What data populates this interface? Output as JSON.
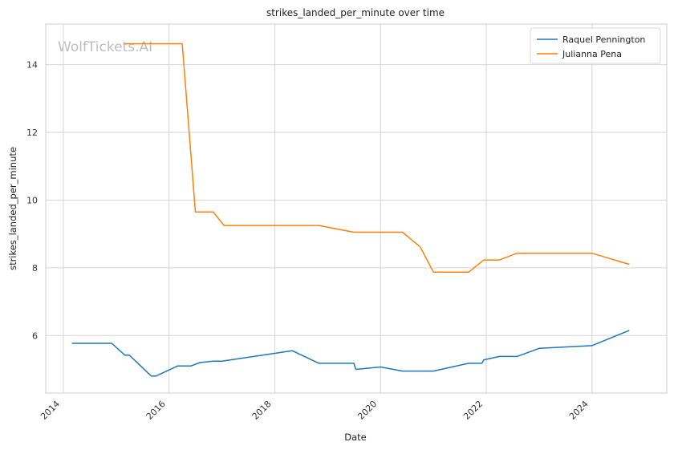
{
  "watermark": "WolfTickets.AI",
  "colors": {
    "grid": "#d5d5d5",
    "axes": "#cccccc",
    "series_0": "#1f77b4",
    "series_1": "#ff7f0e"
  },
  "chart_data": {
    "type": "line",
    "title": "strikes_landed_per_minute over time",
    "xlabel": "Date",
    "ylabel": "strikes_landed_per_minute",
    "xlim": [
      "2013-09-01",
      "2025-06-01"
    ],
    "ylim": [
      4.3,
      15.2
    ],
    "x_ticks": [
      "2014",
      "2016",
      "2018",
      "2020",
      "2022",
      "2024"
    ],
    "y_ticks": [
      6,
      8,
      10,
      12,
      14
    ],
    "grid": true,
    "legend_position": "top-right",
    "series": [
      {
        "name": "Raquel Pennington",
        "color": "#1f77b4",
        "points": [
          [
            "2014-03-01",
            5.77
          ],
          [
            "2014-12-01",
            5.77
          ],
          [
            "2015-03-01",
            5.42
          ],
          [
            "2015-04-01",
            5.42
          ],
          [
            "2015-09-01",
            4.8
          ],
          [
            "2015-10-01",
            4.8
          ],
          [
            "2016-03-01",
            5.1
          ],
          [
            "2016-06-01",
            5.1
          ],
          [
            "2016-08-01",
            5.2
          ],
          [
            "2016-11-01",
            5.24
          ],
          [
            "2017-01-01",
            5.24
          ],
          [
            "2018-05-01",
            5.55
          ],
          [
            "2018-11-01",
            5.18
          ],
          [
            "2019-07-01",
            5.18
          ],
          [
            "2019-07-15",
            5.0
          ],
          [
            "2020-01-01",
            5.07
          ],
          [
            "2020-06-01",
            4.95
          ],
          [
            "2021-01-01",
            4.95
          ],
          [
            "2021-09-01",
            5.18
          ],
          [
            "2021-12-01",
            5.18
          ],
          [
            "2021-12-15",
            5.28
          ],
          [
            "2022-04-01",
            5.38
          ],
          [
            "2022-08-01",
            5.38
          ],
          [
            "2023-01-01",
            5.62
          ],
          [
            "2024-01-01",
            5.7
          ],
          [
            "2024-09-15",
            6.15
          ]
        ]
      },
      {
        "name": "Julianna Pena",
        "color": "#ff7f0e",
        "points": [
          [
            "2015-03-01",
            14.62
          ],
          [
            "2016-04-01",
            14.62
          ],
          [
            "2016-07-01",
            9.65
          ],
          [
            "2016-11-01",
            9.65
          ],
          [
            "2017-01-15",
            9.25
          ],
          [
            "2018-11-01",
            9.25
          ],
          [
            "2019-07-01",
            9.05
          ],
          [
            "2020-06-01",
            9.05
          ],
          [
            "2020-10-01",
            8.62
          ],
          [
            "2021-01-01",
            7.87
          ],
          [
            "2021-09-01",
            7.87
          ],
          [
            "2021-12-15",
            8.23
          ],
          [
            "2022-04-01",
            8.23
          ],
          [
            "2022-08-01",
            8.43
          ],
          [
            "2024-01-01",
            8.43
          ],
          [
            "2024-09-15",
            8.1
          ]
        ]
      }
    ]
  }
}
